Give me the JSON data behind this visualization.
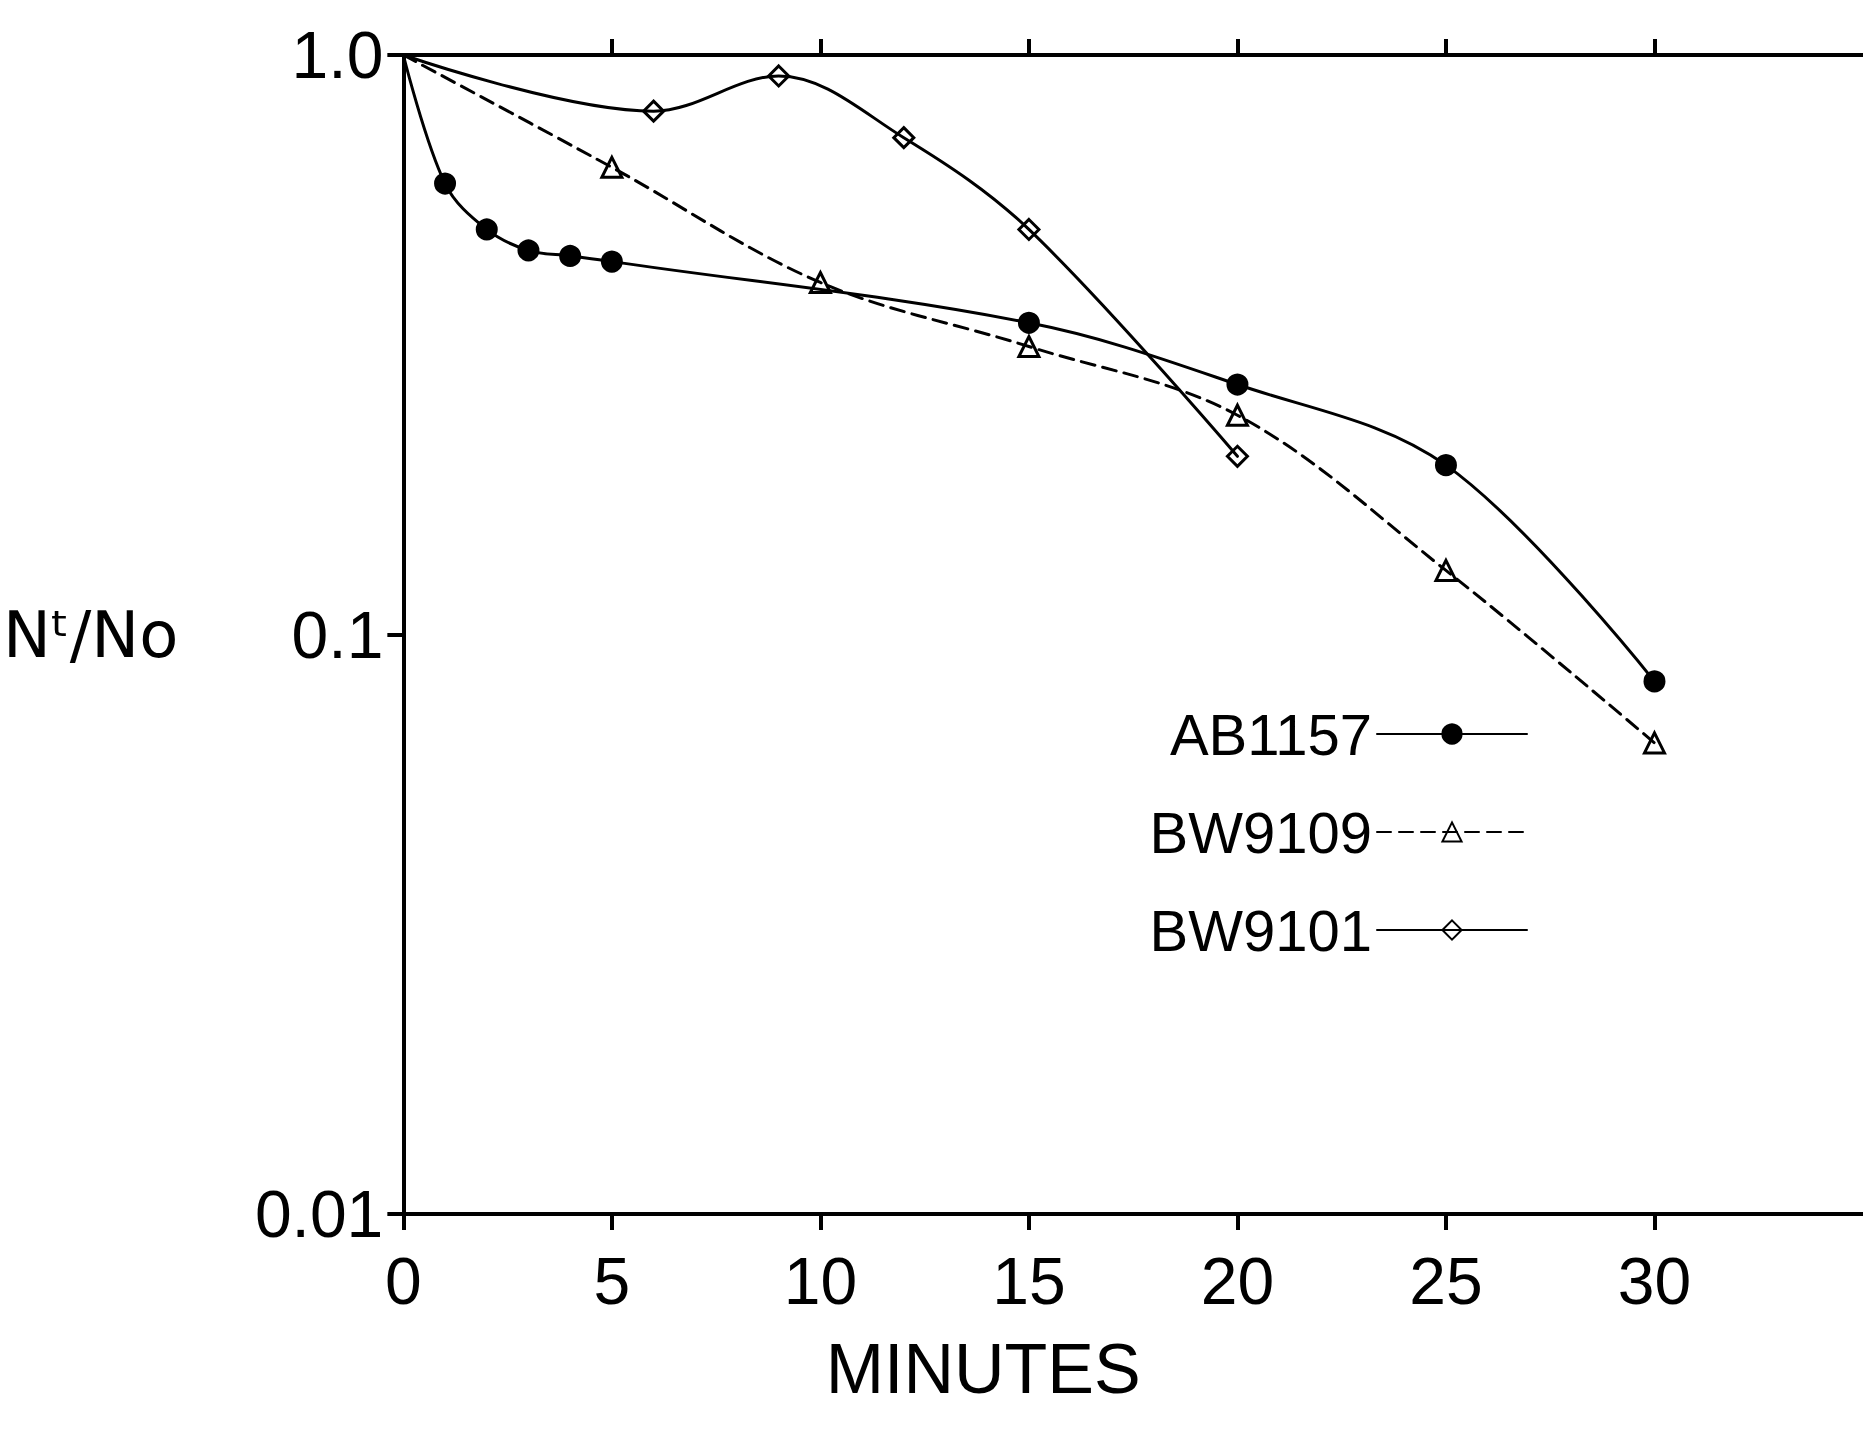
{
  "chart_data": {
    "type": "line",
    "xlabel": "MINUTES",
    "ylabel": "Nᵗ/No",
    "log": "y",
    "xlim": [
      0,
      35
    ],
    "xticks": [
      0,
      5,
      10,
      15,
      20,
      25,
      30
    ],
    "ylim": [
      0.01,
      1
    ],
    "yticks": [
      {
        "value": 1,
        "label": "1.0"
      },
      0.1,
      0.01
    ],
    "grid": false,
    "legend": "right",
    "series": [
      {
        "name": "AB1157",
        "color": "#000000",
        "marker": "circle",
        "line_style": "solid",
        "x": [
          0,
          1,
          2,
          3,
          4,
          5,
          15,
          20,
          25,
          30
        ],
        "values": [
          1,
          0.6,
          0.5,
          0.46,
          0.45,
          0.44,
          0.345,
          0.27,
          0.196,
          0.083
        ]
      },
      {
        "name": "BW9109",
        "color": "#000000",
        "marker": "triangle",
        "line_style": "dashed",
        "x": [
          0,
          5,
          10,
          15,
          20,
          25,
          30
        ],
        "values": [
          1,
          0.64,
          0.405,
          0.314,
          0.239,
          0.129,
          0.065
        ]
      },
      {
        "name": "BW9101",
        "color": "#000000",
        "marker": "diamond",
        "line_style": "solid",
        "x": [
          0,
          6,
          9,
          12,
          15,
          20
        ],
        "values": [
          1,
          0.8,
          0.92,
          0.72,
          0.5,
          0.203
        ]
      }
    ]
  }
}
